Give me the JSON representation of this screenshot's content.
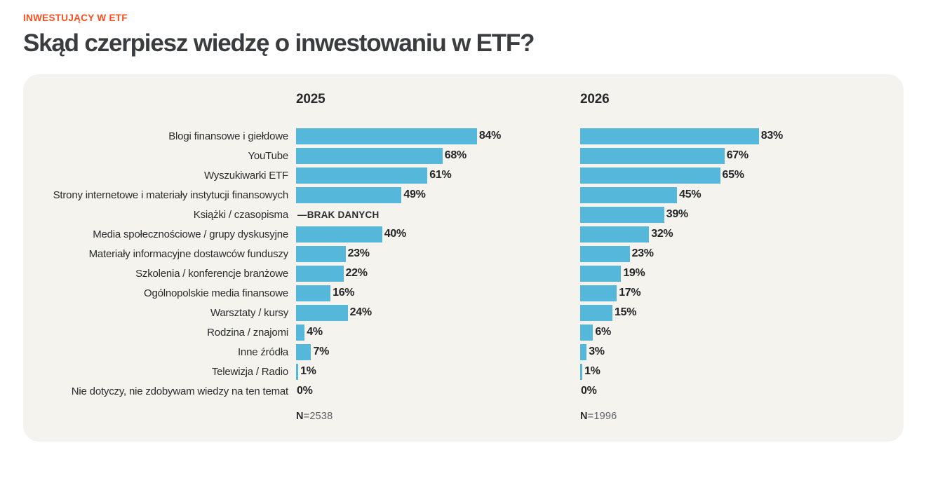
{
  "header": {
    "eyebrow": "INWESTUJĄCY W ETF",
    "title": "Skąd czerpiesz wiedzę o inwestowaniu w ETF?"
  },
  "colors": {
    "accent_orange": "#FB4D1E",
    "bar_blue": "#55B8DB",
    "card_background": "#F4F3ED",
    "text_dark": "#2A2C2E"
  },
  "chart_data": {
    "type": "bar",
    "orientation": "horizontal",
    "value_suffix": "%",
    "xlim": [
      0,
      100
    ],
    "grid": false,
    "no_data_label": "—BRAK DANYCH",
    "categories": [
      "Blogi finansowe i giełdowe",
      "YouTube",
      "Wyszukiwarki ETF",
      "Strony internetowe i materiały instytucji finansowych",
      "Książki / czasopisma",
      "Media społecznościowe / grupy dyskusyjne",
      "Materiały informacyjne dostawców funduszy",
      "Szkolenia / konferencje branżowe",
      "Ogólnopolskie media finansowe",
      "Warsztaty / kursy",
      "Rodzina / znajomi",
      "Inne źródła",
      "Telewizja / Radio",
      "Nie dotyczy, nie zdobywam wiedzy na ten temat"
    ],
    "series": [
      {
        "name": "2025",
        "sample": {
          "bold": "N",
          "rest": "=2538"
        },
        "values": [
          84,
          68,
          61,
          49,
          null,
          40,
          23,
          22,
          16,
          24,
          4,
          7,
          1,
          0
        ]
      },
      {
        "name": "2026",
        "sample": {
          "bold": "N",
          "rest": "=1996"
        },
        "values": [
          83,
          67,
          65,
          45,
          39,
          32,
          23,
          19,
          17,
          15,
          6,
          3,
          1,
          0
        ]
      }
    ]
  }
}
